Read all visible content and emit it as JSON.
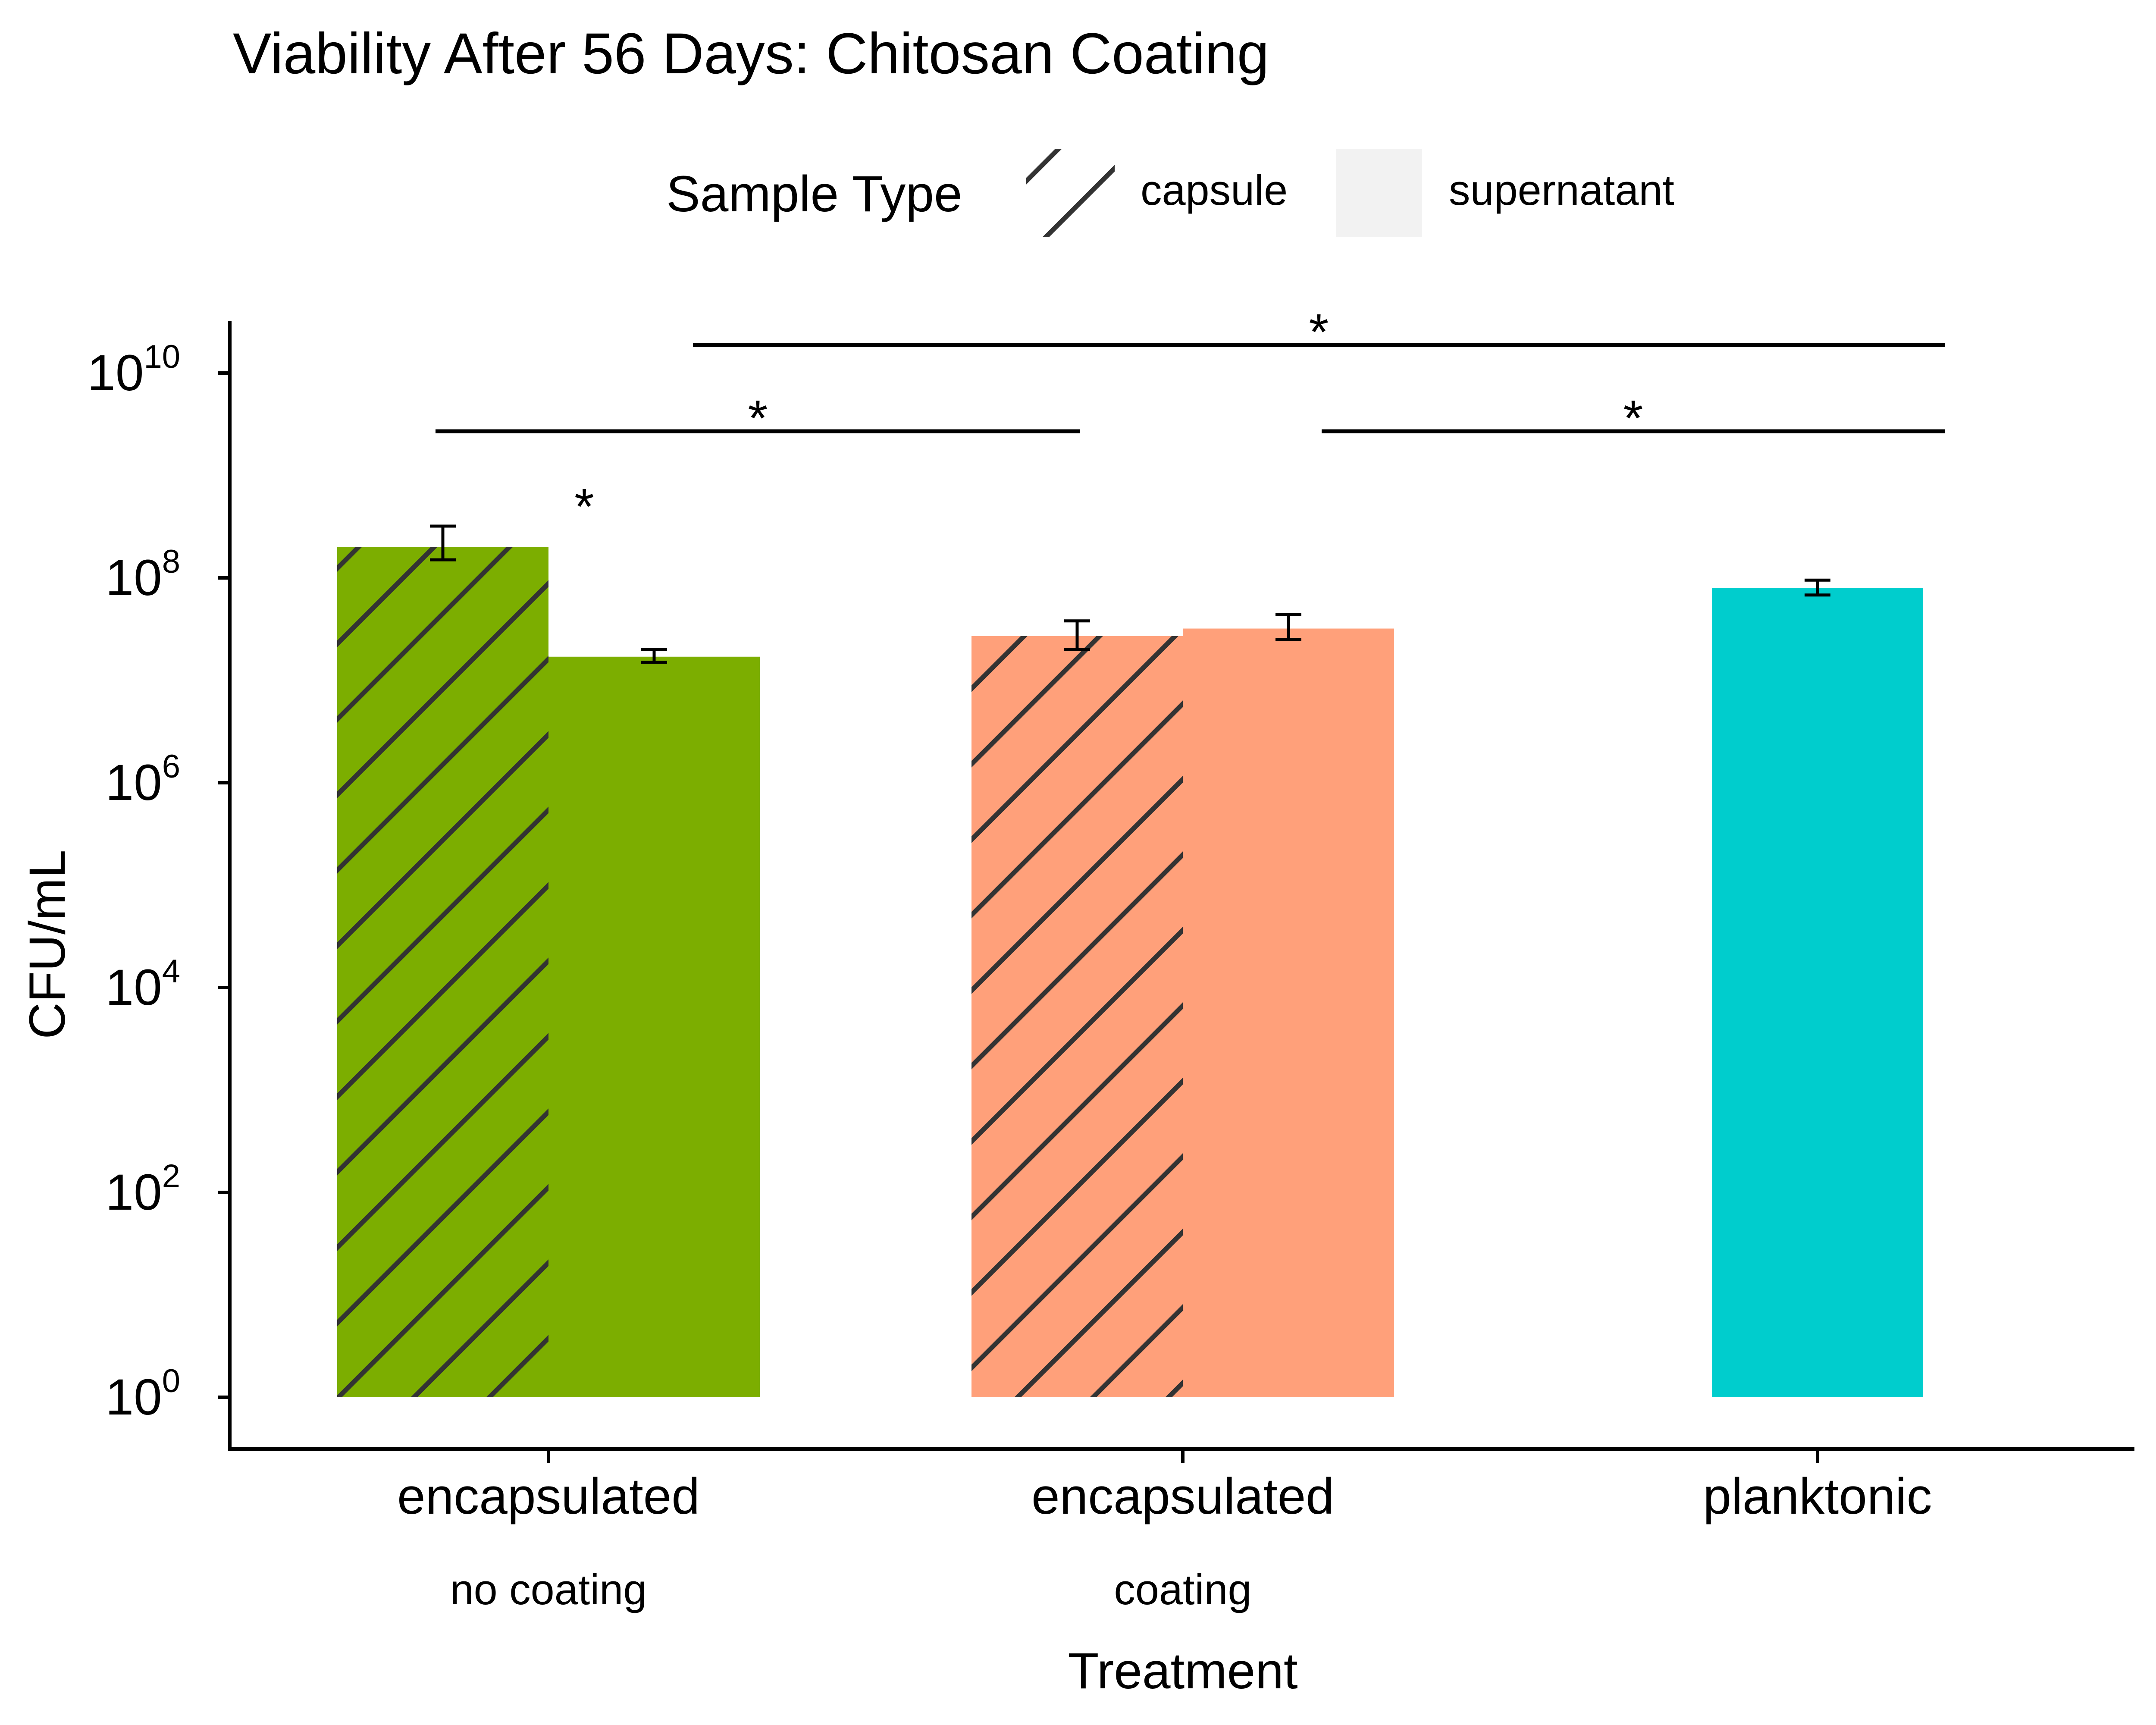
{
  "chart_data": {
    "type": "bar",
    "title": "Viability After 56 Days: Chitosan Coating",
    "xlabel": "Treatment",
    "ylabel": "CFU/mL",
    "y_scale": "log10",
    "ylim": [
      1,
      20000000000
    ],
    "y_ticks": [
      {
        "base": "10",
        "exp": "0"
      },
      {
        "base": "10",
        "exp": "2"
      },
      {
        "base": "10",
        "exp": "4"
      },
      {
        "base": "10",
        "exp": "6"
      },
      {
        "base": "10",
        "exp": "8"
      },
      {
        "base": "10",
        "exp": "10"
      }
    ],
    "grid": false,
    "legend": {
      "title": "Sample Type",
      "position": "top",
      "entries": [
        {
          "label": "capsule",
          "pattern": "hatched"
        },
        {
          "label": "supernatant",
          "pattern": "solid"
        }
      ]
    },
    "groups": [
      {
        "label": "encapsulated",
        "sublabel": "no coating",
        "color": "#7CAE00",
        "bars": [
          {
            "sample_type": "capsule",
            "value": 200000000,
            "err_low": 150000000,
            "err_high": 320000000
          },
          {
            "sample_type": "supernatant",
            "value": 17000000,
            "err_low": 15000000,
            "err_high": 20000000
          }
        ]
      },
      {
        "label": "encapsulated",
        "sublabel": "coating",
        "color": "#FFA07A",
        "bars": [
          {
            "sample_type": "capsule",
            "value": 27000000,
            "err_low": 20000000,
            "err_high": 38000000
          },
          {
            "sample_type": "supernatant",
            "value": 32000000,
            "err_low": 25000000,
            "err_high": 44000000
          }
        ]
      },
      {
        "label": "planktonic",
        "sublabel": "",
        "color": "#00CDCD",
        "bars": [
          {
            "sample_type": "supernatant",
            "value": 80000000,
            "err_low": 68000000,
            "err_high": 95000000
          }
        ]
      }
    ],
    "annotations": [
      {
        "text": "*",
        "type": "bracket",
        "from": "encapsulated / no coating",
        "to": "encapsulated / coating"
      },
      {
        "text": "*",
        "type": "bracket",
        "from": "encapsulated / coating",
        "to": "planktonic"
      },
      {
        "text": "*",
        "type": "bracket",
        "from": "encapsulated / no coating",
        "to": "planktonic"
      },
      {
        "text": "*",
        "type": "point",
        "target": "encapsulated / no coating: capsule vs supernatant"
      }
    ]
  }
}
